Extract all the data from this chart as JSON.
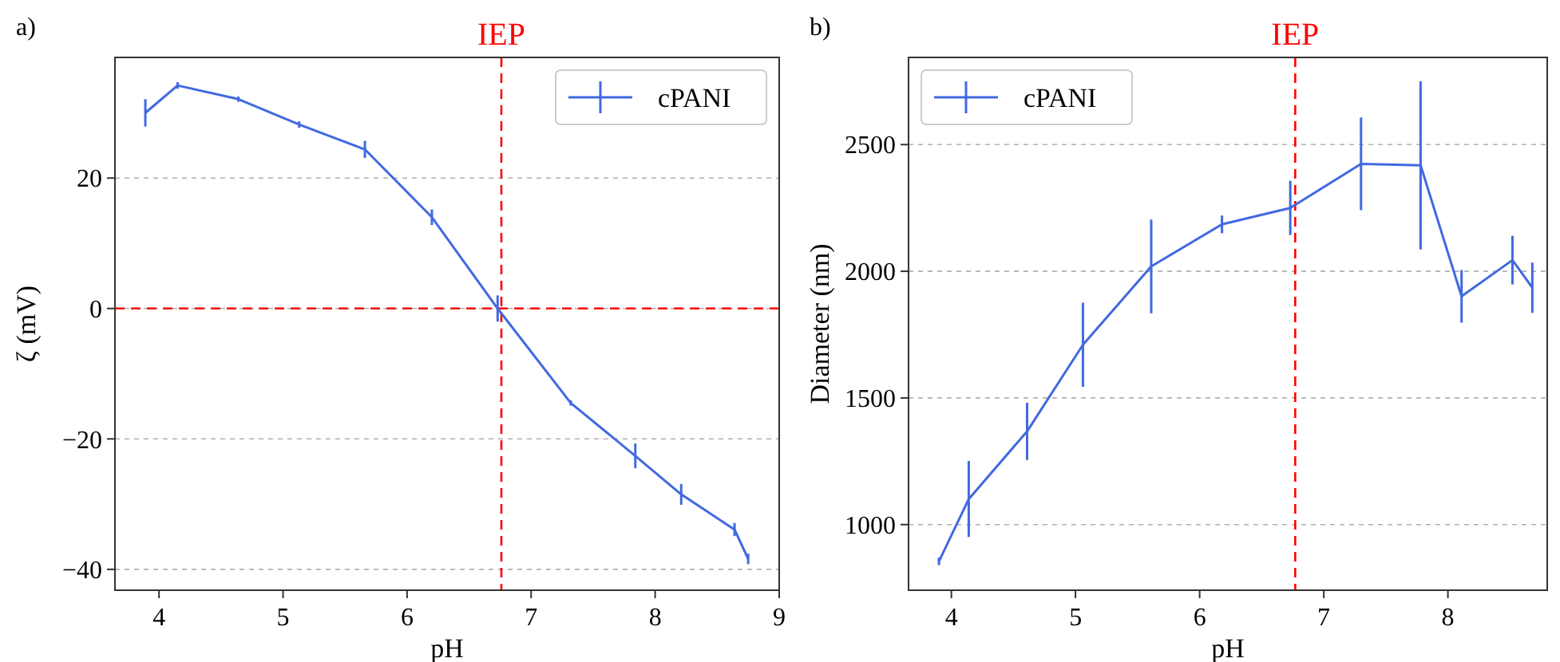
{
  "chart_data": [
    {
      "type": "line",
      "title": "a)",
      "xlabel": "pH",
      "ylabel": "ζ (mV)",
      "xlim": [
        3.645,
        9.0
      ],
      "ylim": [
        -43.2,
        38.5
      ],
      "xticks": [
        4,
        5,
        6,
        7,
        8,
        9
      ],
      "yticks": [
        -40,
        -20,
        0,
        20
      ],
      "grid": "y",
      "legend": "top right",
      "marker": "none",
      "line_style": "solid",
      "series": [
        {
          "name": "cPANI",
          "color": "#4169e1",
          "x": [
            3.89,
            4.15,
            4.64,
            5.13,
            5.66,
            6.2,
            6.73,
            7.32,
            7.84,
            8.21,
            8.64,
            8.75
          ],
          "values": [
            30.0,
            34.2,
            32.1,
            28.2,
            24.4,
            14.0,
            0,
            -14.5,
            -22.6,
            -28.5,
            -33.9,
            -38.4
          ],
          "errors": [
            2.1,
            0.5,
            0.4,
            0.5,
            1.3,
            1.2,
            2,
            0.4,
            1.9,
            1.6,
            1,
            0.8
          ]
        }
      ],
      "ref_lines": [
        {
          "axis": "x",
          "value": 6.76,
          "label": "IEP",
          "color": "#ff0000",
          "line_style": "dashed"
        },
        {
          "axis": "y",
          "value": 0,
          "label": null,
          "color": "#ff0000",
          "line_style": "dashed"
        }
      ]
    },
    {
      "type": "line",
      "title": "b)",
      "xlabel": "pH",
      "ylabel": "Diameter (nm)",
      "xlim": [
        3.655,
        8.8
      ],
      "ylim": [
        741,
        2844
      ],
      "xticks": [
        4,
        5,
        6,
        7,
        8
      ],
      "yticks": [
        1000,
        1500,
        2000,
        2500
      ],
      "grid": "y",
      "legend": "top left",
      "marker": "none",
      "line_style": "solid",
      "series": [
        {
          "name": "cPANI",
          "color": "#4169e1",
          "x": [
            3.9,
            4.14,
            4.61,
            5.06,
            5.61,
            6.18,
            6.73,
            7.3,
            7.78,
            8.11,
            8.52,
            8.68
          ],
          "values": [
            855,
            1101,
            1368,
            1710,
            2019,
            2185,
            2250,
            2424,
            2418,
            1901,
            2044,
            1935
          ],
          "errors": [
            15,
            150,
            113,
            166,
            185,
            35,
            107,
            183,
            332,
            104,
            96,
            99
          ]
        }
      ],
      "ref_lines": [
        {
          "axis": "x",
          "value": 6.77,
          "label": "IEP",
          "color": "#ff0000",
          "line_style": "dashed"
        }
      ]
    }
  ]
}
